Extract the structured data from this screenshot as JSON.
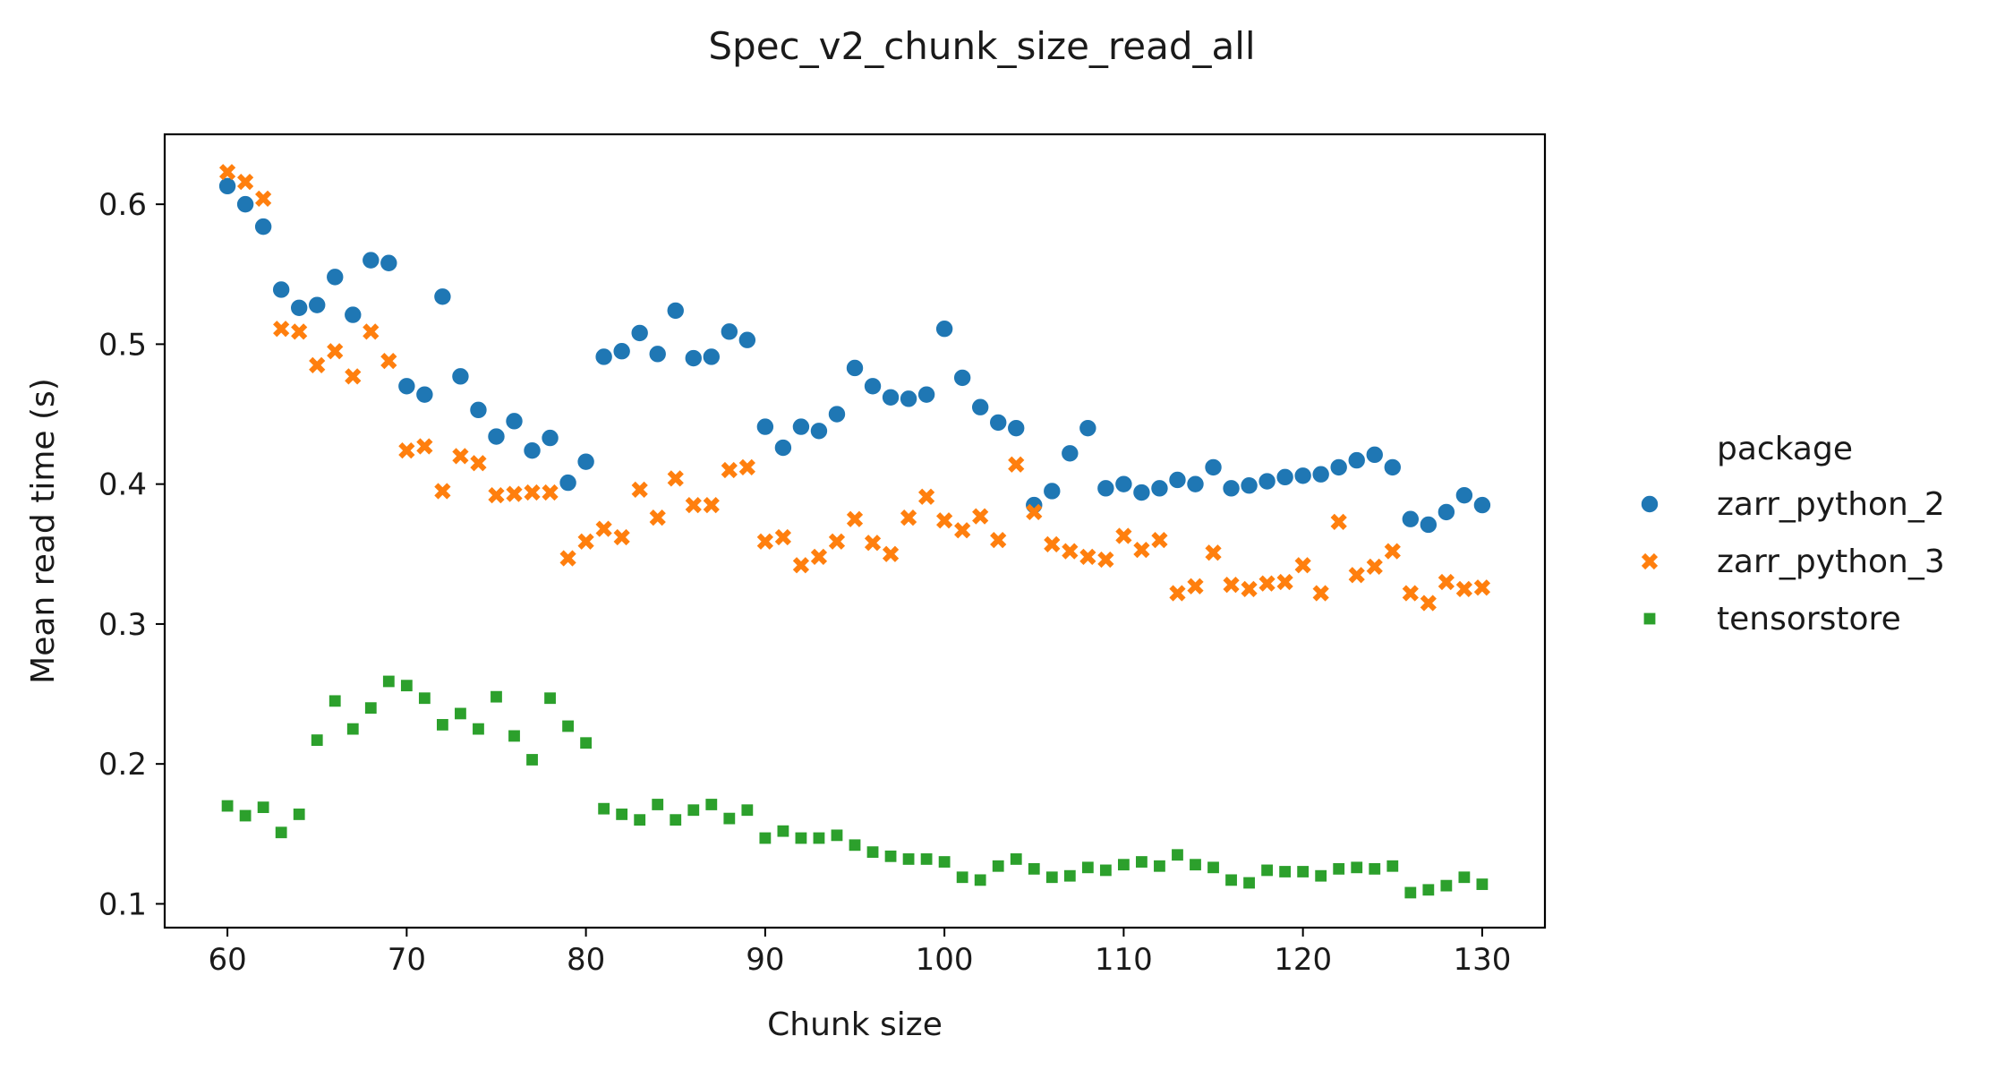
{
  "chart_data": {
    "type": "scatter",
    "title": "Spec_v2_chunk_size_read_all",
    "xlabel": "Chunk size",
    "ylabel": "Mean read time (s)",
    "xlim": [
      56.5,
      133.5
    ],
    "ylim": [
      0.083,
      0.65
    ],
    "x_ticks": [
      60,
      70,
      80,
      90,
      100,
      110,
      120,
      130
    ],
    "x_tick_labels": [
      "60",
      "70",
      "80",
      "90",
      "100",
      "110",
      "120",
      "130"
    ],
    "y_ticks": [
      0.1,
      0.2,
      0.3,
      0.4,
      0.5,
      0.6
    ],
    "y_tick_labels": [
      "0.1",
      "0.2",
      "0.3",
      "0.4",
      "0.5",
      "0.6"
    ],
    "grid": false,
    "legend": {
      "title": "package",
      "placement": "outside-right"
    },
    "series": [
      {
        "name": "zarr_python_2",
        "color": "#1f77b4",
        "marker": "circle",
        "x": [
          60,
          61,
          62,
          63,
          64,
          65,
          66,
          67,
          68,
          69,
          70,
          71,
          72,
          73,
          74,
          75,
          76,
          77,
          78,
          79,
          80,
          81,
          82,
          83,
          84,
          85,
          86,
          87,
          88,
          89,
          90,
          91,
          92,
          93,
          94,
          95,
          96,
          97,
          98,
          99,
          100,
          101,
          102,
          103,
          104,
          105,
          106,
          107,
          108,
          109,
          110,
          111,
          112,
          113,
          114,
          115,
          116,
          117,
          118,
          119,
          120,
          121,
          122,
          123,
          124,
          125,
          126,
          127,
          128,
          129,
          130
        ],
        "y": [
          0.613,
          0.6,
          0.584,
          0.539,
          0.526,
          0.528,
          0.548,
          0.521,
          0.56,
          0.558,
          0.47,
          0.464,
          0.534,
          0.477,
          0.453,
          0.434,
          0.445,
          0.424,
          0.433,
          0.401,
          0.416,
          0.491,
          0.495,
          0.508,
          0.493,
          0.524,
          0.49,
          0.491,
          0.509,
          0.503,
          0.441,
          0.426,
          0.441,
          0.438,
          0.45,
          0.483,
          0.47,
          0.462,
          0.461,
          0.464,
          0.511,
          0.476,
          0.455,
          0.444,
          0.44,
          0.385,
          0.395,
          0.422,
          0.44,
          0.397,
          0.4,
          0.394,
          0.397,
          0.403,
          0.4,
          0.412,
          0.397,
          0.399,
          0.402,
          0.405,
          0.406,
          0.407,
          0.412,
          0.417,
          0.421,
          0.412,
          0.375,
          0.371,
          0.38,
          0.392,
          0.385
        ]
      },
      {
        "name": "zarr_python_3",
        "color": "#ff7f0e",
        "marker": "x",
        "x": [
          60,
          61,
          62,
          63,
          64,
          65,
          66,
          67,
          68,
          69,
          70,
          71,
          72,
          73,
          74,
          75,
          76,
          77,
          78,
          79,
          80,
          81,
          82,
          83,
          84,
          85,
          86,
          87,
          88,
          89,
          90,
          91,
          92,
          93,
          94,
          95,
          96,
          97,
          98,
          99,
          100,
          101,
          102,
          103,
          104,
          105,
          106,
          107,
          108,
          109,
          110,
          111,
          112,
          113,
          114,
          115,
          116,
          117,
          118,
          119,
          120,
          121,
          122,
          123,
          124,
          125,
          126,
          127,
          128,
          129,
          130
        ],
        "y": [
          0.623,
          0.616,
          0.604,
          0.511,
          0.509,
          0.485,
          0.495,
          0.477,
          0.509,
          0.488,
          0.424,
          0.427,
          0.395,
          0.42,
          0.415,
          0.392,
          0.393,
          0.394,
          0.394,
          0.347,
          0.359,
          0.368,
          0.362,
          0.396,
          0.376,
          0.404,
          0.385,
          0.385,
          0.41,
          0.412,
          0.359,
          0.362,
          0.342,
          0.348,
          0.359,
          0.375,
          0.358,
          0.35,
          0.376,
          0.391,
          0.374,
          0.367,
          0.377,
          0.36,
          0.414,
          0.38,
          0.357,
          0.352,
          0.348,
          0.346,
          0.363,
          0.353,
          0.36,
          0.322,
          0.327,
          0.351,
          0.328,
          0.325,
          0.329,
          0.33,
          0.342,
          0.322,
          0.373,
          0.335,
          0.341,
          0.352,
          0.322,
          0.315,
          0.33,
          0.325,
          0.326
        ]
      },
      {
        "name": "tensorstore",
        "color": "#2ca02c",
        "marker": "square",
        "x": [
          60,
          61,
          62,
          63,
          64,
          65,
          66,
          67,
          68,
          69,
          70,
          71,
          72,
          73,
          74,
          75,
          76,
          77,
          78,
          79,
          80,
          81,
          82,
          83,
          84,
          85,
          86,
          87,
          88,
          89,
          90,
          91,
          92,
          93,
          94,
          95,
          96,
          97,
          98,
          99,
          100,
          101,
          102,
          103,
          104,
          105,
          106,
          107,
          108,
          109,
          110,
          111,
          112,
          113,
          114,
          115,
          116,
          117,
          118,
          119,
          120,
          121,
          122,
          123,
          124,
          125,
          126,
          127,
          128,
          129,
          130
        ],
        "y": [
          0.17,
          0.163,
          0.169,
          0.151,
          0.164,
          0.217,
          0.245,
          0.225,
          0.24,
          0.259,
          0.256,
          0.247,
          0.228,
          0.236,
          0.225,
          0.248,
          0.22,
          0.203,
          0.247,
          0.227,
          0.215,
          0.168,
          0.164,
          0.16,
          0.171,
          0.16,
          0.167,
          0.171,
          0.161,
          0.167,
          0.147,
          0.152,
          0.147,
          0.147,
          0.149,
          0.142,
          0.137,
          0.134,
          0.132,
          0.132,
          0.13,
          0.119,
          0.117,
          0.127,
          0.132,
          0.125,
          0.119,
          0.12,
          0.126,
          0.124,
          0.128,
          0.13,
          0.127,
          0.135,
          0.128,
          0.126,
          0.117,
          0.115,
          0.124,
          0.123,
          0.123,
          0.12,
          0.125,
          0.126,
          0.125,
          0.127,
          0.108,
          0.11,
          0.113,
          0.119,
          0.114
        ]
      }
    ]
  }
}
